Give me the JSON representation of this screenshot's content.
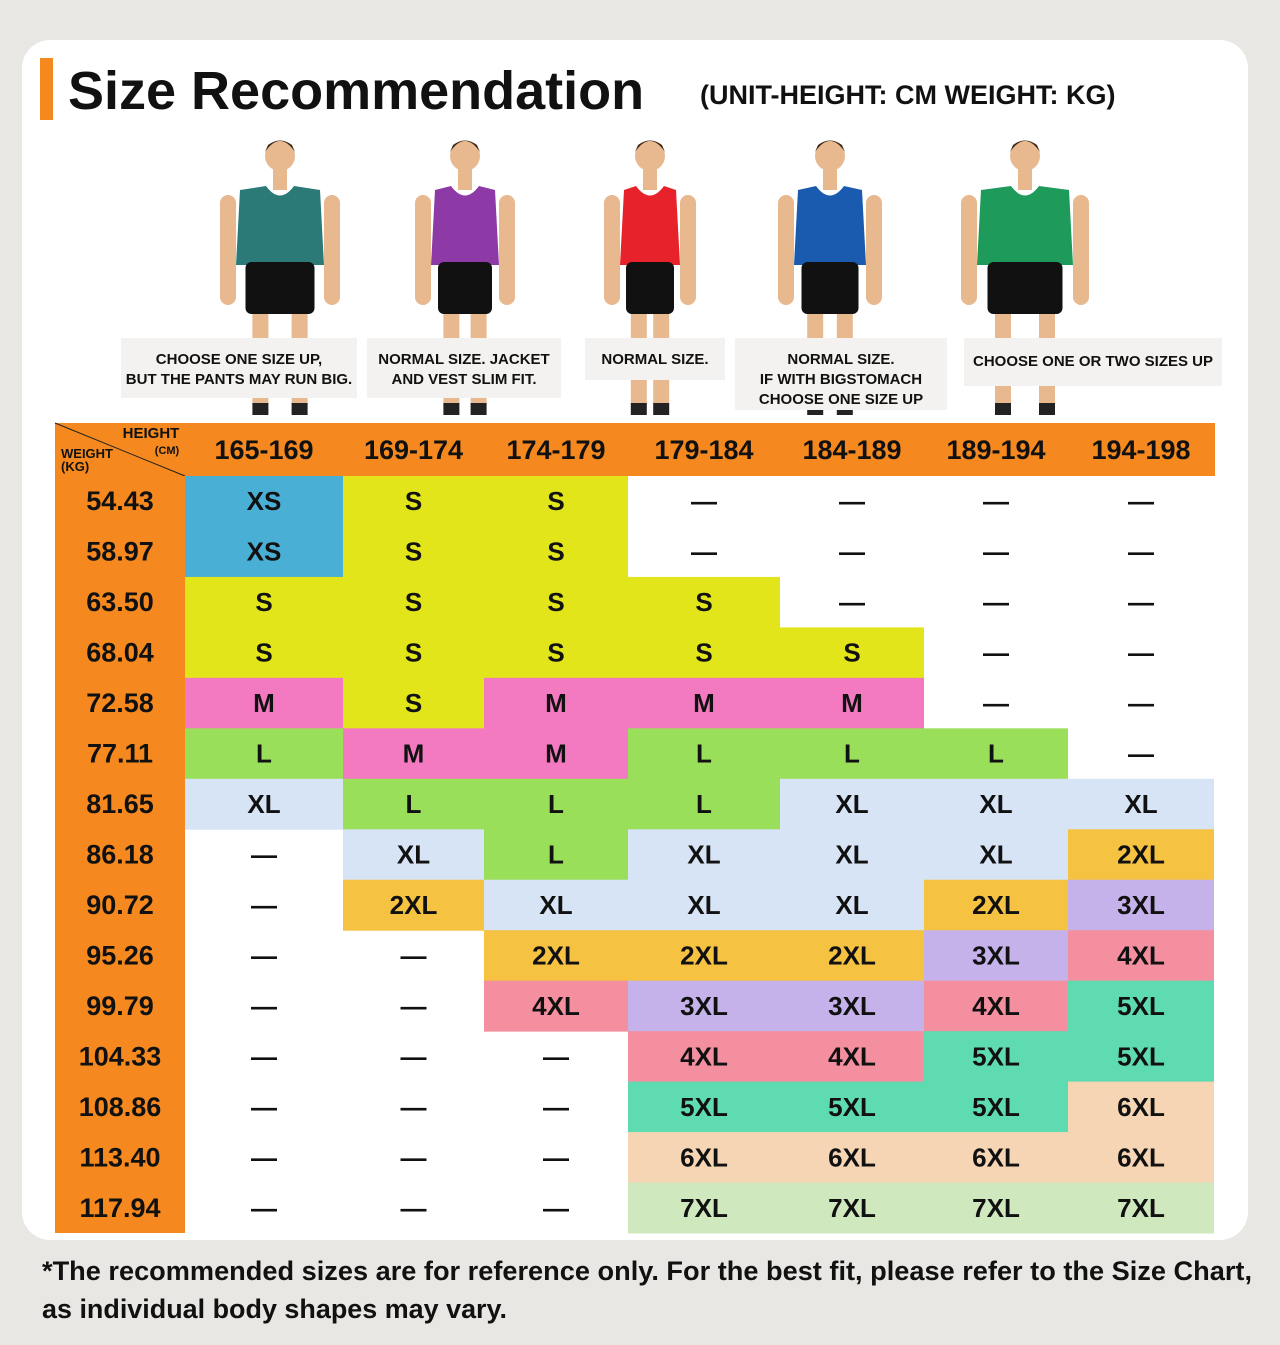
{
  "header": {
    "title": "Size Recommendation",
    "unit": "(UNIT-HEIGHT: CM  WEIGHT: KG)"
  },
  "notes": [
    [
      "CHOOSE ONE SIZE UP,",
      "BUT THE PANTS MAY RUN BIG."
    ],
    [
      "NORMAL SIZE. JACKET",
      "AND VEST SLIM FIT."
    ],
    [
      "NORMAL SIZE."
    ],
    [
      "NORMAL SIZE.",
      "IF WITH BIGSTOMACH",
      "CHOOSE ONE SIZE UP"
    ],
    [
      "CHOOSE ONE OR TWO SIZES UP"
    ]
  ],
  "table": {
    "corner": {
      "height": "HEIGHT",
      "height_unit": "(CM)",
      "weight": "WEIGHT",
      "weight_unit": "(KG)"
    },
    "columns": [
      "165-169",
      "169-174",
      "174-179",
      "179-184",
      "184-189",
      "189-194",
      "194-198"
    ],
    "rows": [
      {
        "weight": "54.43",
        "cells": [
          "XS",
          "S",
          "S",
          "—",
          "—",
          "—",
          "—"
        ]
      },
      {
        "weight": "58.97",
        "cells": [
          "XS",
          "S",
          "S",
          "—",
          "—",
          "—",
          "—"
        ]
      },
      {
        "weight": "63.50",
        "cells": [
          "S",
          "S",
          "S",
          "S",
          "—",
          "—",
          "—"
        ]
      },
      {
        "weight": "68.04",
        "cells": [
          "S",
          "S",
          "S",
          "S",
          "S",
          "—",
          "—"
        ]
      },
      {
        "weight": "72.58",
        "cells": [
          "M",
          "S",
          "M",
          "M",
          "M",
          "—",
          "—"
        ]
      },
      {
        "weight": "77.11",
        "cells": [
          "L",
          "M",
          "M",
          "L",
          "L",
          "L",
          "—"
        ]
      },
      {
        "weight": "81.65",
        "cells": [
          "XL",
          "L",
          "L",
          "L",
          "XL",
          "XL",
          "XL"
        ]
      },
      {
        "weight": "86.18",
        "cells": [
          "—",
          "XL",
          "L",
          "XL",
          "XL",
          "XL",
          "2XL"
        ]
      },
      {
        "weight": "90.72",
        "cells": [
          "—",
          "2XL",
          "XL",
          "XL",
          "XL",
          "2XL",
          "3XL"
        ]
      },
      {
        "weight": "95.26",
        "cells": [
          "—",
          "—",
          "2XL",
          "2XL",
          "2XL",
          "3XL",
          "4XL"
        ]
      },
      {
        "weight": "99.79",
        "cells": [
          "—",
          "—",
          "4XL",
          "3XL",
          "3XL",
          "4XL",
          "5XL"
        ]
      },
      {
        "weight": "104.33",
        "cells": [
          "—",
          "—",
          "—",
          "4XL",
          "4XL",
          "5XL",
          "5XL"
        ]
      },
      {
        "weight": "108.86",
        "cells": [
          "—",
          "—",
          "—",
          "5XL",
          "5XL",
          "5XL",
          "6XL"
        ]
      },
      {
        "weight": "113.40",
        "cells": [
          "—",
          "—",
          "—",
          "6XL",
          "6XL",
          "6XL",
          "6XL"
        ]
      },
      {
        "weight": "117.94",
        "cells": [
          "—",
          "—",
          "—",
          "7XL",
          "7XL",
          "7XL",
          "7XL"
        ]
      }
    ],
    "colors": {
      "XS": "#4aafd5",
      "S": "#e2e51a",
      "M": "#f37ac0",
      "L": "#99df5a",
      "XL": "#d6e4f5",
      "2XL": "#f5c242",
      "3XL": "#c6b2ea",
      "4XL": "#f48fa0",
      "5XL": "#5edbb0",
      "6XL": "#f5d5b4",
      "7XL": "#cfe8be"
    }
  },
  "footnote": [
    "*The recommended sizes are for reference only. For the best fit, please refer to the Size Chart,",
    "as individual body shapes may vary."
  ]
}
